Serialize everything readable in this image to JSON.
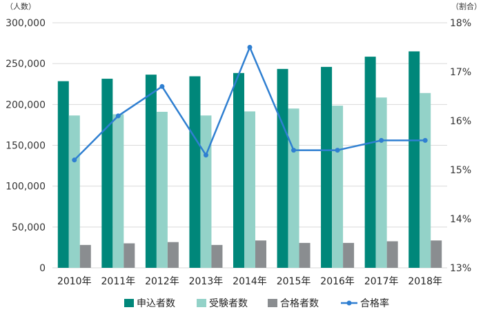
{
  "chart_data": {
    "type": "bar",
    "categories": [
      "2010年",
      "2011年",
      "2012年",
      "2013年",
      "2014年",
      "2015年",
      "2016年",
      "2017年",
      "2018年"
    ],
    "series": [
      {
        "name": "申込者数",
        "type": "bar",
        "axis": "left",
        "color": "#00877a",
        "values": [
          228500,
          231500,
          236500,
          234500,
          238500,
          243500,
          246000,
          258500,
          265000
        ]
      },
      {
        "name": "受験者数",
        "type": "bar",
        "axis": "left",
        "color": "#93d2c8",
        "values": [
          186500,
          188000,
          191000,
          186500,
          191500,
          195000,
          198500,
          208500,
          214000
        ]
      },
      {
        "name": "合格者数",
        "type": "bar",
        "axis": "left",
        "color": "#8a8d90",
        "values": [
          28000,
          30000,
          31500,
          28000,
          33500,
          30500,
          30500,
          32500,
          33500
        ]
      },
      {
        "name": "合格率",
        "type": "line",
        "axis": "right",
        "color": "#2f7fd1",
        "values": [
          15.2,
          16.1,
          16.7,
          15.3,
          17.5,
          15.4,
          15.4,
          15.6,
          15.6
        ]
      }
    ],
    "y_left": {
      "unit": "（人数）",
      "min": 0,
      "max": 300000,
      "ticks": [
        0,
        50000,
        100000,
        150000,
        200000,
        250000,
        300000
      ],
      "tick_labels": [
        "0",
        "50,000",
        "100,000",
        "150,000",
        "200,000",
        "250,000",
        "300,000"
      ]
    },
    "y_right": {
      "unit": "（割合）",
      "min": 13,
      "max": 18,
      "ticks": [
        13,
        14,
        15,
        16,
        17,
        18
      ],
      "tick_labels": [
        "13%",
        "14%",
        "15%",
        "16%",
        "17%",
        "18%"
      ]
    },
    "grid": true,
    "legend_position": "bottom"
  }
}
